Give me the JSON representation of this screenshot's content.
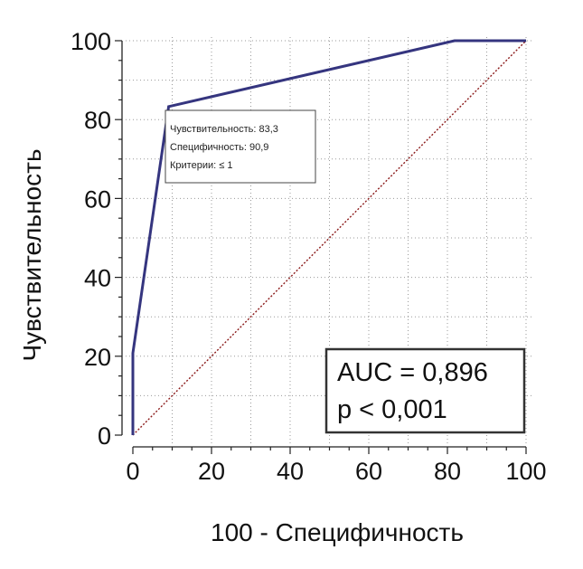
{
  "chart_data": {
    "type": "line",
    "xlabel": "100 - Специфичность",
    "ylabel": "Чувствительность",
    "xlim": [
      0,
      100
    ],
    "ylim": [
      0,
      100
    ],
    "xticks": [
      "0",
      "20",
      "40",
      "60",
      "80",
      "100"
    ],
    "yticks": [
      "0",
      "20",
      "40",
      "60",
      "80",
      "100"
    ],
    "grid": true,
    "series": [
      {
        "values": [
          [
            0,
            0
          ],
          [
            0,
            20.8
          ],
          [
            9.1,
            83.3
          ],
          [
            81.8,
            100
          ],
          [
            100,
            100
          ]
        ],
        "color": "#35357f"
      },
      {
        "values": [
          [
            0,
            0
          ],
          [
            100,
            100
          ]
        ],
        "color": "#8b1a1a"
      }
    ],
    "tooltip": {
      "point": [
        9.1,
        83.3
      ],
      "lines": [
        "Чувствительность: 83,3",
        "Специфичность: 90,9",
        "Критерии: ≤ 1"
      ]
    },
    "stats": {
      "auc": "AUC = 0,896",
      "p": "p < 0,001"
    }
  }
}
